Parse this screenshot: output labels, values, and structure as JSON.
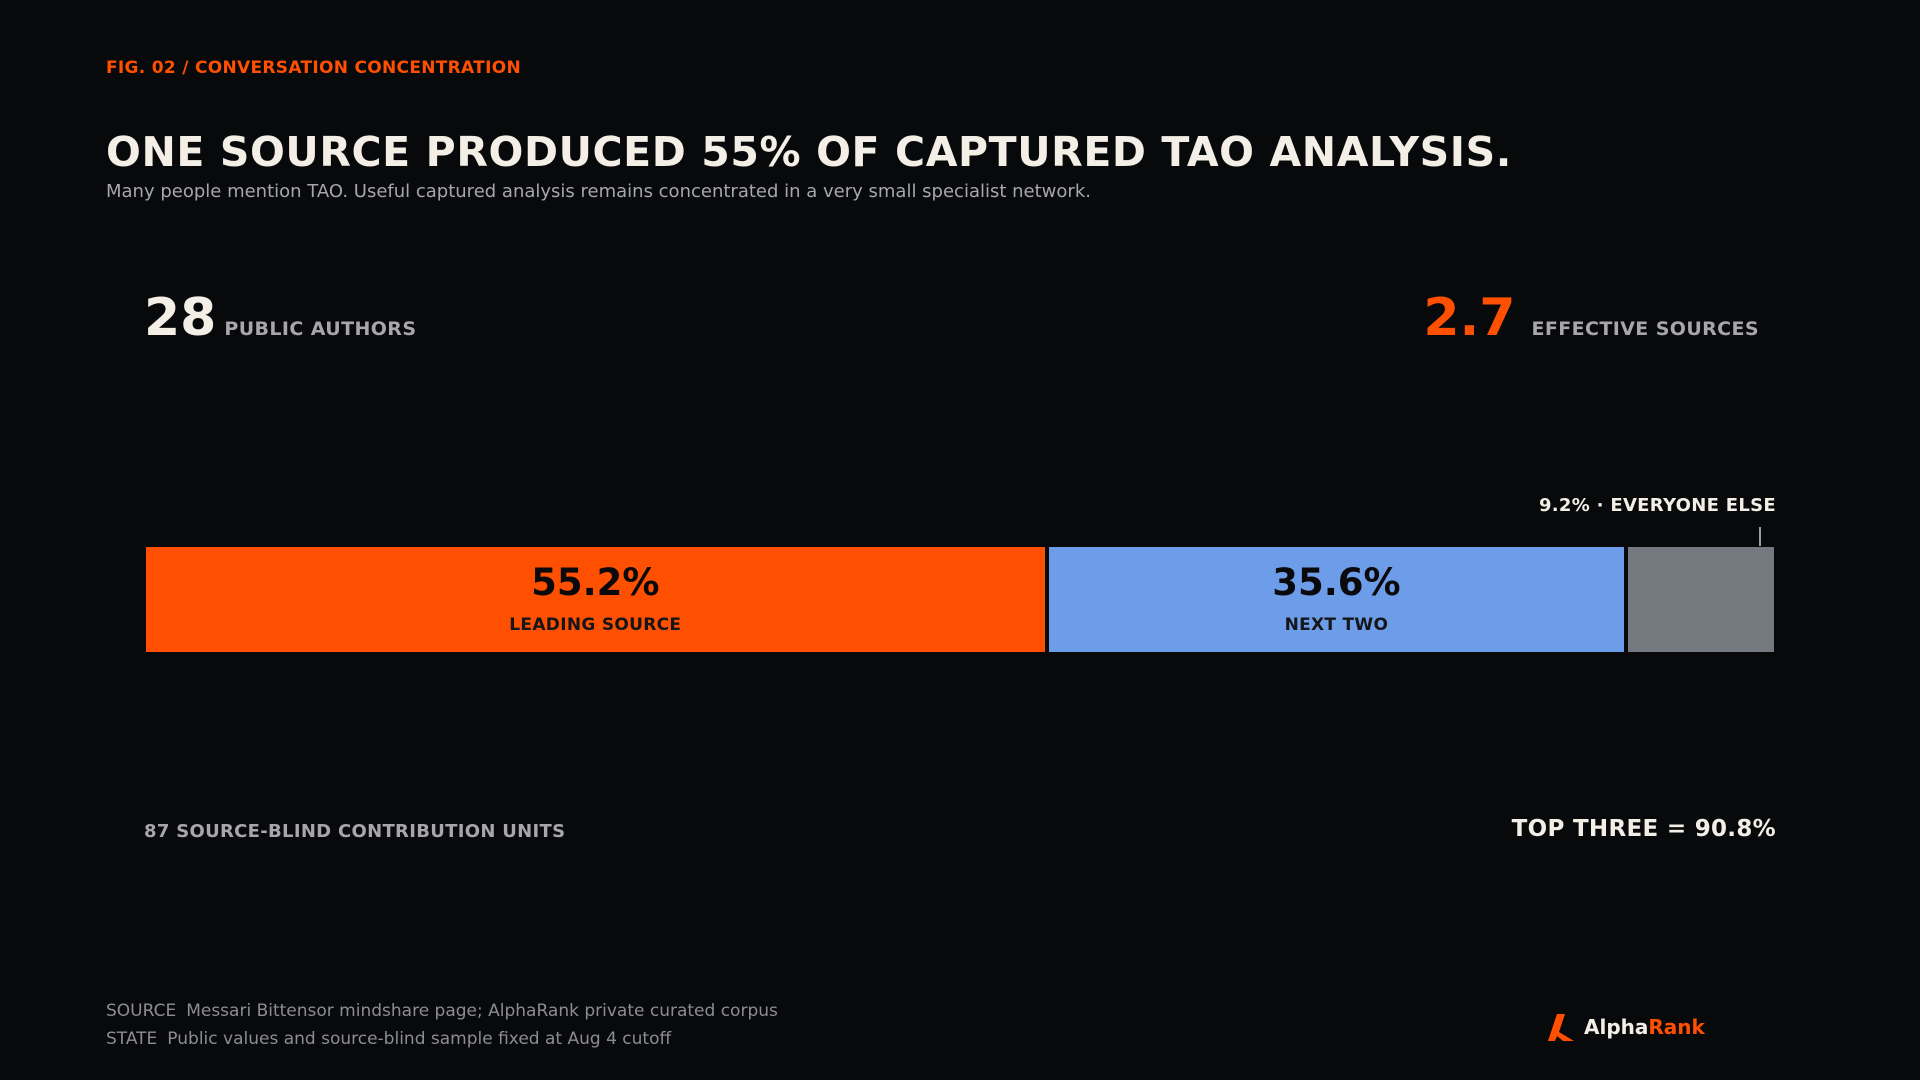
{
  "header": {
    "fig_label": "FIG. 02 / CONVERSATION CONCENTRATION",
    "title": "ONE SOURCE PRODUCED 55% OF CAPTURED TAO ANALYSIS.",
    "subtitle": "Many people mention TAO. Useful captured analysis remains concentrated in a very small specialist network."
  },
  "stats": {
    "authors": {
      "value": "28",
      "label": "PUBLIC AUTHORS"
    },
    "effective": {
      "value": "2.7",
      "label": "EFFECTIVE SOURCES"
    }
  },
  "callout": "9.2% · EVERYONE ELSE",
  "chart_data": {
    "type": "bar",
    "orientation": "horizontal-stacked",
    "categories": [
      "LEADING SOURCE",
      "NEXT TWO",
      "EVERYONE ELSE"
    ],
    "values": [
      55.2,
      35.6,
      9.2
    ],
    "value_labels": [
      "55.2%",
      "35.6%",
      ""
    ],
    "segment_labels": [
      "LEADING SOURCE",
      "NEXT TWO",
      ""
    ],
    "colors": [
      "#ff4f00",
      "#6d9ce8",
      "#74787f"
    ],
    "xlim": [
      0,
      100
    ],
    "grid": false,
    "legend": "none"
  },
  "bottom": {
    "units_label": "87 SOURCE-BLIND CONTRIBUTION UNITS",
    "top_three": "TOP THREE = 90.8%"
  },
  "footer": {
    "source_key": "SOURCE",
    "source_text": "Messari Bittensor mindshare page; AlphaRank private curated corpus",
    "state_key": "STATE",
    "state_text": "Public values and source-blind sample fixed at Aug 4 cutoff"
  },
  "brand": {
    "part1": "Alpha",
    "part2": "Rank",
    "icon": "alpharank-logo-icon",
    "accent": "#ff4f00"
  }
}
